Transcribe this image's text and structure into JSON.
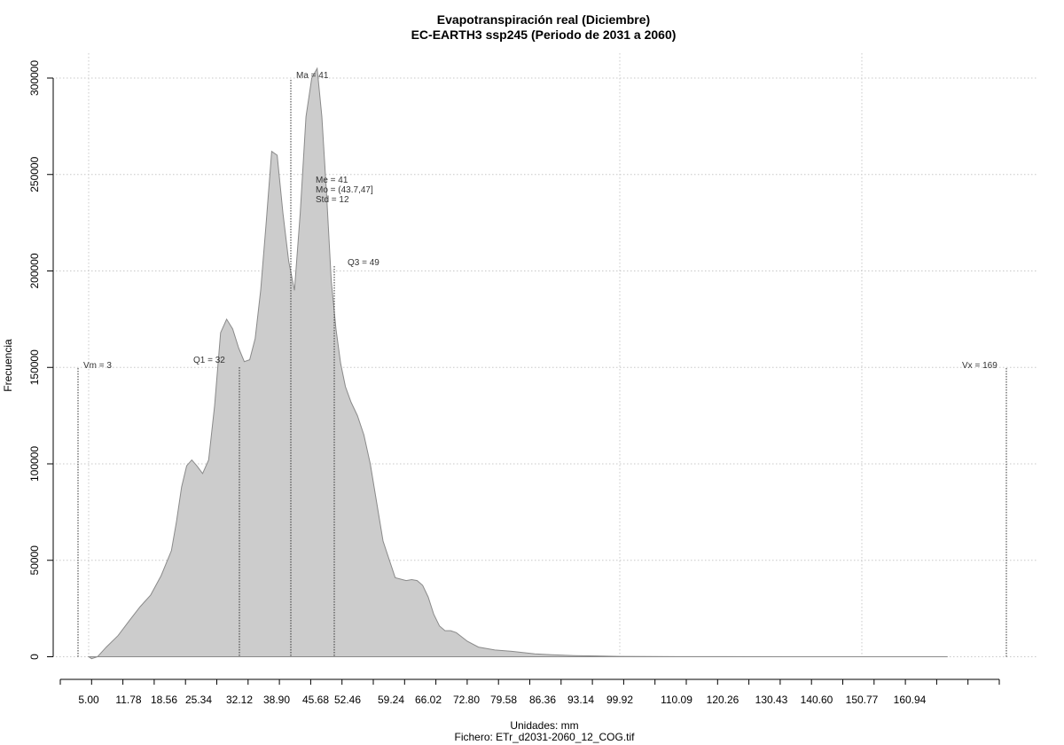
{
  "chart_data": {
    "type": "area",
    "title": "Evapotranspiración real (Diciembre)",
    "subtitle": "EC-EARTH3 ssp245 (Periodo de 2031 a 2060)",
    "xlabel": "Unidades: mm",
    "file_label": "Fichero: ETr_d2031-2060_12_COG.tif",
    "ylabel": "Frecuencia",
    "xlim": [
      3,
      169
    ],
    "ylim": [
      0,
      300000
    ],
    "grid": true,
    "x_ticks": [
      "5.00",
      "11.78",
      "18.56",
      "25.34",
      "32.12",
      "38.90",
      "45.68",
      "52.46",
      "59.24",
      "66.02",
      "72.80",
      "79.58",
      "86.36",
      "93.14",
      "99.92",
      "110.09",
      "120.26",
      "130.43",
      "140.60",
      "150.77",
      "160.94"
    ],
    "y_ticks": [
      "0",
      "50000",
      "100000",
      "150000",
      "200000",
      "250000",
      "300000"
    ],
    "series": [
      {
        "x": [
          5.0,
          5.5,
          6.5,
          8.0,
          10.0,
          12.0,
          14.0,
          16.0,
          18.0,
          20.0,
          21.0,
          22.0,
          23.0,
          24.0,
          25.0,
          26.0,
          27.0,
          28.0,
          29.0,
          30.0,
          31.0,
          32.0,
          33.0,
          34.0,
          35.0,
          36.0,
          37.0,
          38.0,
          39.0,
          40.0,
          41.0,
          42.0,
          43.0,
          44.0,
          45.0,
          46.0,
          47.0,
          48.0,
          49.0,
          50.0,
          51.0,
          52.0,
          53.0,
          54.0,
          55.0,
          56.0,
          57.0,
          58.0,
          60.0,
          62.0,
          63.0,
          64.0,
          65.0,
          66.0,
          67.0,
          68.0,
          69.0,
          70.0,
          71.0,
          73.0,
          75.0,
          78.0,
          81.0,
          85.0,
          88.0,
          92.0,
          96.0,
          100.0,
          105.0,
          120.0,
          140.0,
          160.0,
          169.0
        ],
        "y": [
          0,
          -1000,
          0,
          5000,
          11000,
          19000,
          26000,
          32000,
          42000,
          55000,
          70000,
          88000,
          99000,
          102000,
          99000,
          95000,
          102000,
          130000,
          168000,
          175000,
          170000,
          160000,
          153000,
          154000,
          165000,
          190000,
          225000,
          262000,
          260000,
          230000,
          205000,
          190000,
          230000,
          280000,
          300000,
          305000,
          280000,
          240000,
          195000,
          170000,
          152000,
          140000,
          132000,
          125000,
          115000,
          100000,
          80000,
          60000,
          41000,
          39500,
          40000,
          39500,
          37000,
          31000,
          22000,
          16000,
          13500,
          13500,
          12500,
          8000,
          5000,
          3500,
          2800,
          1500,
          1000,
          600,
          400,
          200,
          100,
          50,
          20,
          10,
          0
        ]
      }
    ],
    "annotations": {
      "vm": "Vm = 3",
      "q1": "Q1 = 32",
      "ma": "Ma = 41",
      "me": "Me = 41",
      "mo": "Mo = (43.7,47]",
      "std": "Std = 12",
      "q3": "Q3 = 49",
      "vx": "Vx = 169"
    },
    "colors": {
      "fill": "#cccccc",
      "stroke": "#8a8a8a",
      "grid": "#c8c8c8",
      "marker": "#333333"
    }
  }
}
